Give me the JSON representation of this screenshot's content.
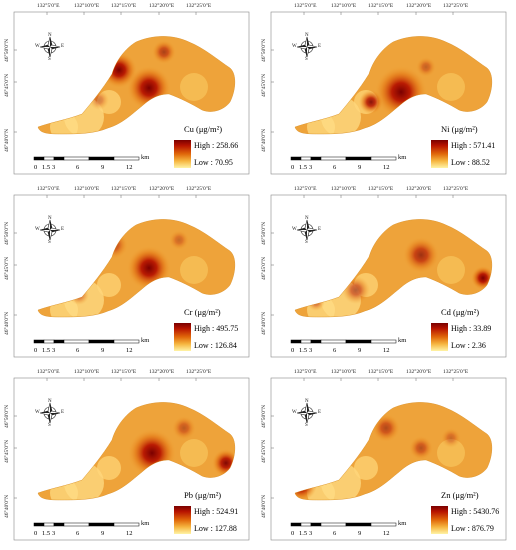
{
  "lon_labels_top": [
    "132°5'0\"E",
    "132°10'0\"E",
    "132°15'0\"E",
    "132°20'0\"E",
    "132°25'0\"E"
  ],
  "lat_labels_left": [
    "46°50'0\"N",
    "46°45'0\"N",
    "46°40'0\"N"
  ],
  "north_arrow": {
    "n": "N",
    "s": "S",
    "e": "E",
    "w": "W",
    "icon": "compass-rose-icon"
  },
  "scale_bar": {
    "ticks": [
      "0",
      "1.5",
      "3",
      "6",
      "9",
      "12"
    ],
    "unit": "km"
  },
  "colors": {
    "high": "#7a0000",
    "mid": "#e0680a",
    "low": "#fff3a6"
  },
  "panels": [
    {
      "id": "cu",
      "metal": "Cu (μg/m²)",
      "high": "High : 258.66",
      "low": "Low : 70.95"
    },
    {
      "id": "ni",
      "metal": "Ni (μg/m²)",
      "high": "High : 571.41",
      "low": "Low : 88.52"
    },
    {
      "id": "cr",
      "metal": "Cr (μg/m²)",
      "high": "High : 495.75",
      "low": "Low : 126.84"
    },
    {
      "id": "cd",
      "metal": "Cd (μg/m²)",
      "high": "High : 33.89",
      "low": "Low : 2.36"
    },
    {
      "id": "pb",
      "metal": "Pb (μg/m²)",
      "high": "High : 524.91",
      "low": "Low : 127.88"
    },
    {
      "id": "zn",
      "metal": "Zn (μg/m²)",
      "high": "High : 5430.76",
      "low": "Low : 876.79"
    }
  ]
}
